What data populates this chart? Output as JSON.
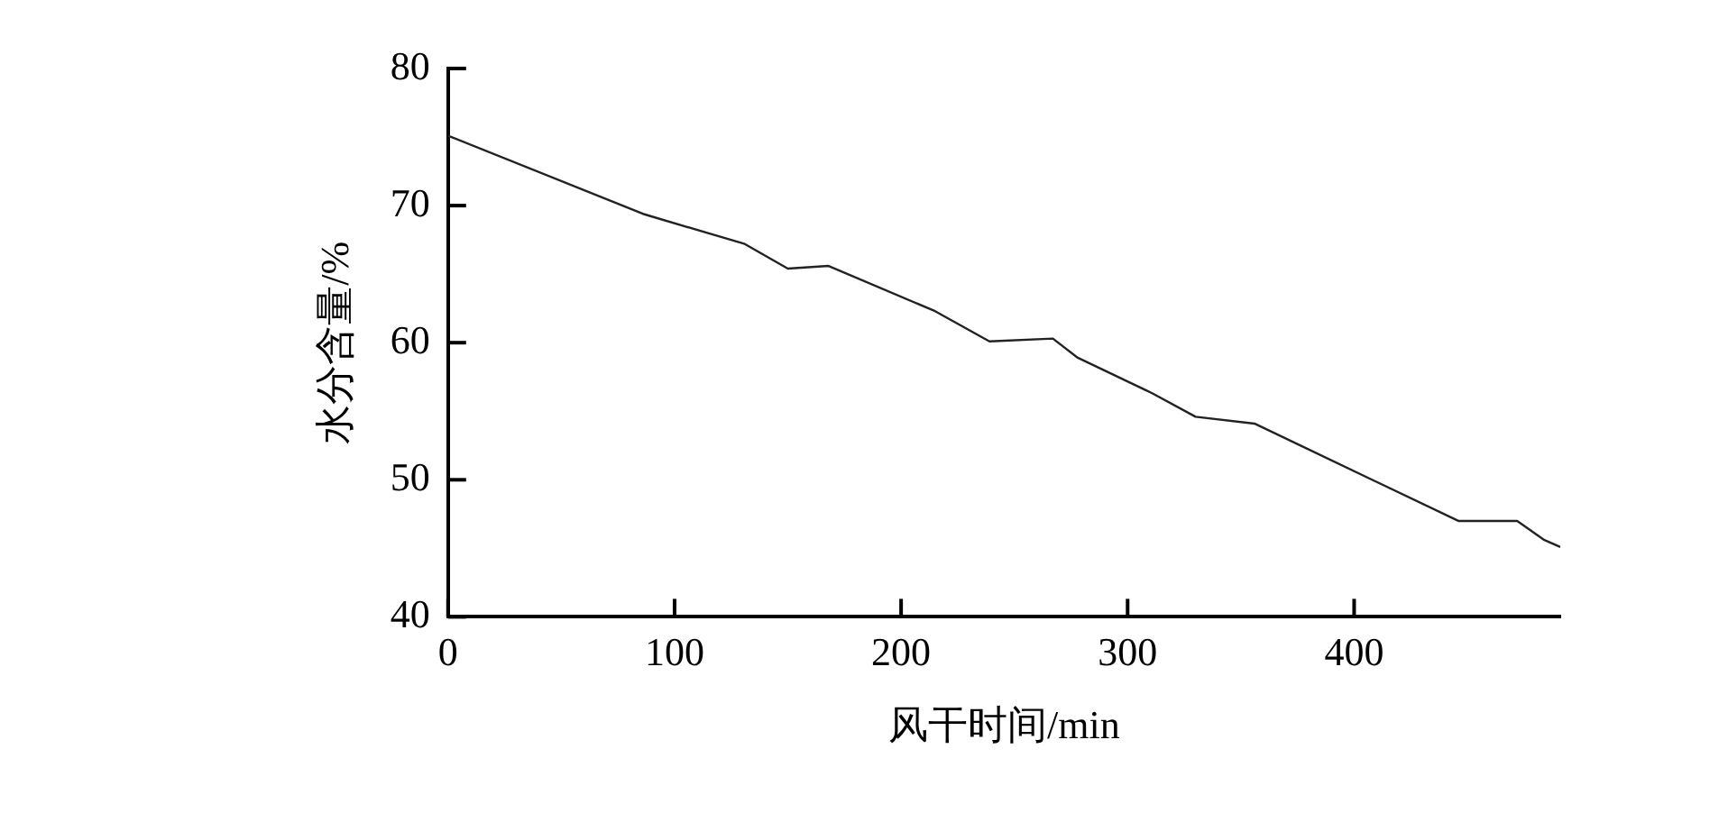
{
  "chart_data": {
    "type": "line",
    "xlabel": "风干时间/min",
    "ylabel": "水分含量/%",
    "series": [
      {
        "color": "#222222",
        "x": [
          0,
          86,
          131,
          150,
          168,
          215,
          239,
          267,
          278,
          311,
          330,
          356,
          446,
          472,
          484,
          491
        ],
        "values": [
          75.1,
          69.4,
          67.2,
          65.4,
          65.6,
          62.3,
          60.1,
          60.3,
          58.9,
          56.3,
          54.6,
          54.1,
          47.0,
          47.0,
          45.6,
          45.1
        ]
      }
    ],
    "xlim": [
      0,
      491
    ],
    "xticks": [
      0,
      100,
      200,
      300,
      400
    ],
    "ylim": [
      40,
      80
    ],
    "yticks": [
      40,
      50,
      60,
      70,
      80
    ],
    "grid": false,
    "legend": false,
    "marker": "none",
    "line_style": "solid"
  }
}
